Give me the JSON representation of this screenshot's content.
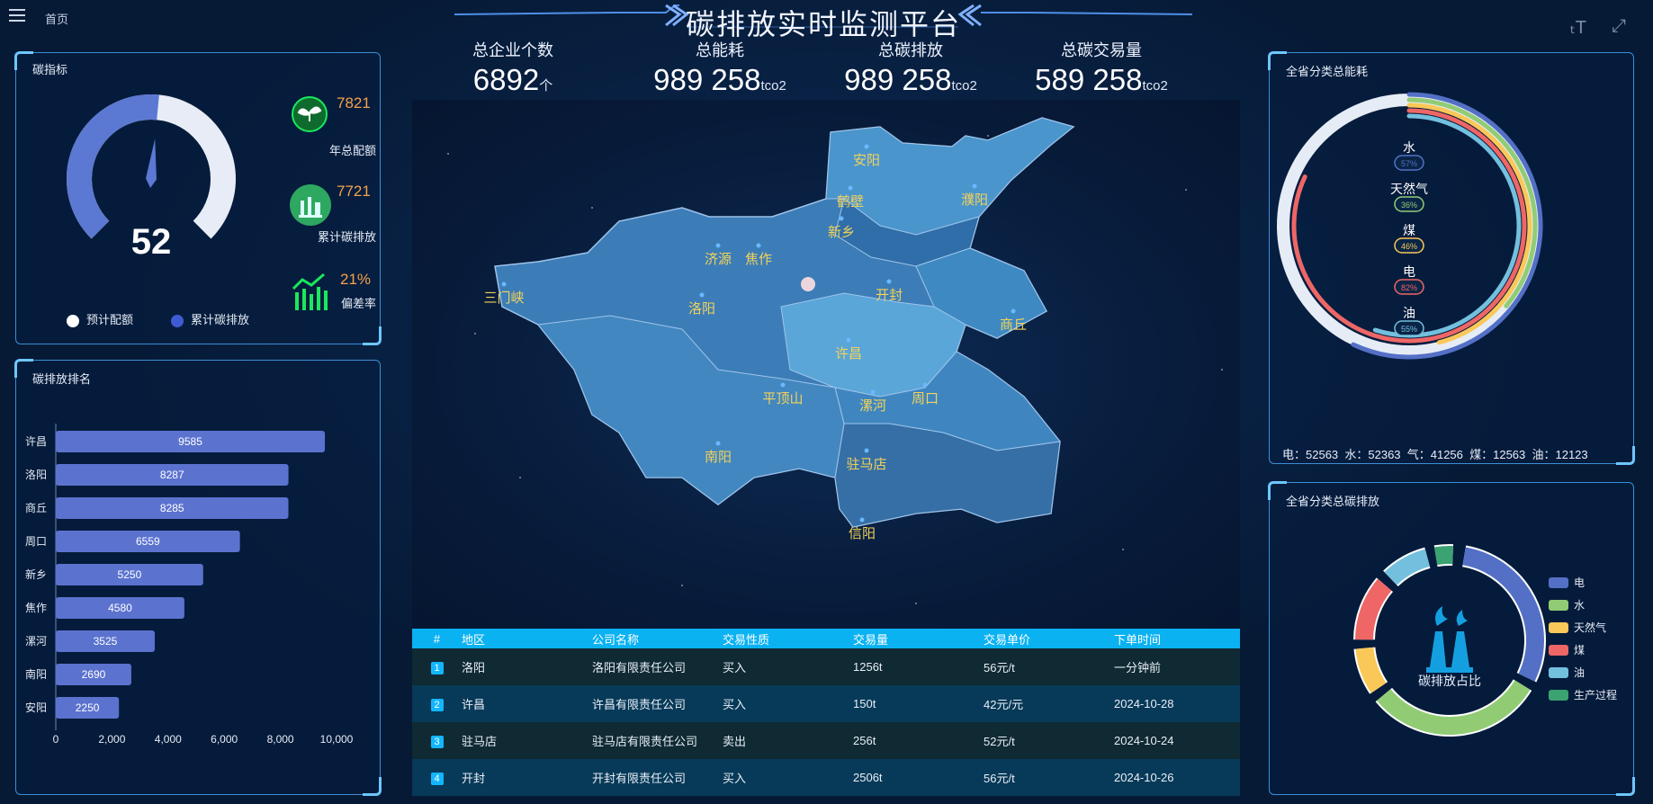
{
  "header": {
    "home": "首页",
    "title": "碳排放实时监测平台"
  },
  "kpis": [
    {
      "label": "总企业个数",
      "value": "6892",
      "unit": "个"
    },
    {
      "label": "总能耗",
      "value": "989 258",
      "unit": "tco2"
    },
    {
      "label": "总碳排放",
      "value": "989 258",
      "unit": "tco2"
    },
    {
      "label": "总碳交易量",
      "value": "589 258",
      "unit": "tco2"
    }
  ],
  "carbon_index": {
    "title": "碳指标",
    "gauge_value": "52",
    "gauge_fraction": 0.52,
    "items": [
      {
        "value": "7821",
        "label": "年总配额"
      },
      {
        "value": "7721",
        "label": "累计碳排放"
      },
      {
        "value": "21%",
        "label": "偏差率"
      }
    ],
    "legend": [
      "预计配额",
      "累计碳排放"
    ]
  },
  "ranking": {
    "title": "碳排放排名",
    "chart_data": {
      "type": "bar",
      "categories": [
        "许昌",
        "洛阳",
        "商丘",
        "周口",
        "新乡",
        "焦作",
        "漯河",
        "南阳",
        "安阳"
      ],
      "values": [
        9585,
        8287,
        8285,
        6559,
        5250,
        4580,
        3525,
        2690,
        2250
      ],
      "xlim": [
        0,
        10000
      ],
      "xticks": [
        "0",
        "2,000",
        "4,000",
        "6,000",
        "8,000",
        "10,000"
      ]
    }
  },
  "map": {
    "cities": [
      "安阳",
      "鹤壁",
      "濮阳",
      "新乡",
      "济源",
      "焦作",
      "三门峡",
      "洛阳",
      "开封",
      "商丘",
      "许昌",
      "平顶山",
      "漯河",
      "周口",
      "南阳",
      "驻马店",
      "信阳"
    ]
  },
  "table": {
    "headers": [
      "#",
      "地区",
      "公司名称",
      "交易性质",
      "交易量",
      "交易单价",
      "下单时间"
    ],
    "rows": [
      {
        "idx": "1",
        "region": "洛阳",
        "company": "洛阳有限责任公司",
        "type": "买入",
        "volume": "1256t",
        "price": "56元/t",
        "time": "一分钟前"
      },
      {
        "idx": "2",
        "region": "许昌",
        "company": "许昌有限责任公司",
        "type": "买入",
        "volume": "150t",
        "price": "42元/元",
        "time": "2024-10-28"
      },
      {
        "idx": "3",
        "region": "驻马店",
        "company": "驻马店有限责任公司",
        "type": "卖出",
        "volume": "256t",
        "price": "52元/t",
        "time": "2024-10-24"
      },
      {
        "idx": "4",
        "region": "开封",
        "company": "开封有限责任公司",
        "type": "买入",
        "volume": "2506t",
        "price": "56元/t",
        "time": "2024-10-26"
      }
    ]
  },
  "energy": {
    "title": "全省分类总能耗",
    "rings": [
      {
        "name": "水",
        "pct": "57%",
        "color": "#5470c6"
      },
      {
        "name": "天然气",
        "pct": "36%",
        "color": "#91cc75"
      },
      {
        "name": "煤",
        "pct": "46%",
        "color": "#fac858"
      },
      {
        "name": "电",
        "pct": "82%",
        "color": "#ee6666"
      },
      {
        "name": "油",
        "pct": "55%",
        "color": "#73c0de"
      }
    ],
    "footer": "电：52563  水：52363  气：41256  煤：12563  油：12123"
  },
  "emission": {
    "title": "全省分类总碳排放",
    "center_label": "碳排放占比",
    "legend": [
      {
        "name": "电",
        "color": "#5470c6"
      },
      {
        "name": "水",
        "color": "#91cc75"
      },
      {
        "name": "天然气",
        "color": "#fac858"
      },
      {
        "name": "煤",
        "color": "#ee6666"
      },
      {
        "name": "油",
        "color": "#73c0de"
      },
      {
        "name": "生产过程",
        "color": "#3ba272"
      }
    ]
  }
}
